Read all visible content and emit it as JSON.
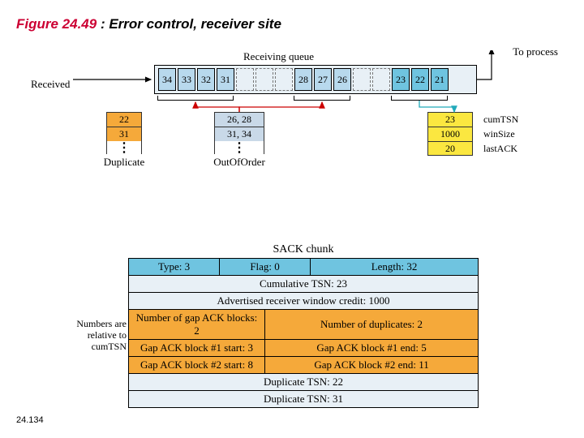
{
  "title": {
    "fig": "Figure 24.49",
    "sep": "  :  ",
    "caption": "Error control, receiver site"
  },
  "page": "24.134",
  "labels": {
    "recv_queue": "Receiving queue",
    "to_process": "To process",
    "received": "Received",
    "duplicate": "Duplicate",
    "out_of_order": "OutOfOrder"
  },
  "queue": {
    "slots": [
      {
        "v": "34",
        "c": "a"
      },
      {
        "v": "33",
        "c": "a"
      },
      {
        "v": "32",
        "c": "a"
      },
      {
        "v": "31",
        "c": "a"
      },
      {
        "v": "",
        "c": "e"
      },
      {
        "v": "",
        "c": "e"
      },
      {
        "v": "",
        "c": "e"
      },
      {
        "v": "28",
        "c": "a"
      },
      {
        "v": "27",
        "c": "a"
      },
      {
        "v": "26",
        "c": "a"
      },
      {
        "v": "",
        "c": "e"
      },
      {
        "v": "",
        "c": "e"
      },
      {
        "v": "23",
        "c": "b"
      },
      {
        "v": "22",
        "c": "b"
      },
      {
        "v": "21",
        "c": "b"
      }
    ]
  },
  "dup_stack": [
    "22",
    "31"
  ],
  "ooo_stack": [
    "26, 28",
    "31, 34"
  ],
  "info": {
    "values": [
      "23",
      "1000",
      "20"
    ],
    "labels": [
      "cumTSN",
      "winSize",
      "lastACK"
    ]
  },
  "sack": {
    "title": "SACK chunk",
    "header": [
      "Type: 3",
      "Flag: 0",
      "Length: 32"
    ],
    "rows": [
      {
        "cls": "gray",
        "cells": [
          "Cumulative TSN: 23"
        ]
      },
      {
        "cls": "gray",
        "cells": [
          "Advertised receiver window credit: 1000"
        ]
      },
      {
        "cls": "orange",
        "cells": [
          "Number of gap ACK blocks: 2",
          "Number of duplicates: 2"
        ]
      },
      {
        "cls": "orange",
        "cells": [
          "Gap ACK block #1 start: 3",
          "Gap ACK block #1 end: 5"
        ]
      },
      {
        "cls": "orange",
        "cells": [
          "Gap ACK block #2 start: 8",
          "Gap ACK block #2 end: 11"
        ]
      },
      {
        "cls": "gray",
        "cells": [
          "Duplicate TSN: 22"
        ]
      },
      {
        "cls": "gray",
        "cells": [
          "Duplicate TSN: 31"
        ]
      }
    ],
    "side_note": "Numbers are relative to cumTSN"
  },
  "colors": {
    "red": "#cc0033",
    "cyan": "#6fc4e0",
    "lightblue": "#b8d9ed",
    "pale": "#e8f0f6",
    "orange": "#f5a93a",
    "yellow": "#fbe740"
  }
}
